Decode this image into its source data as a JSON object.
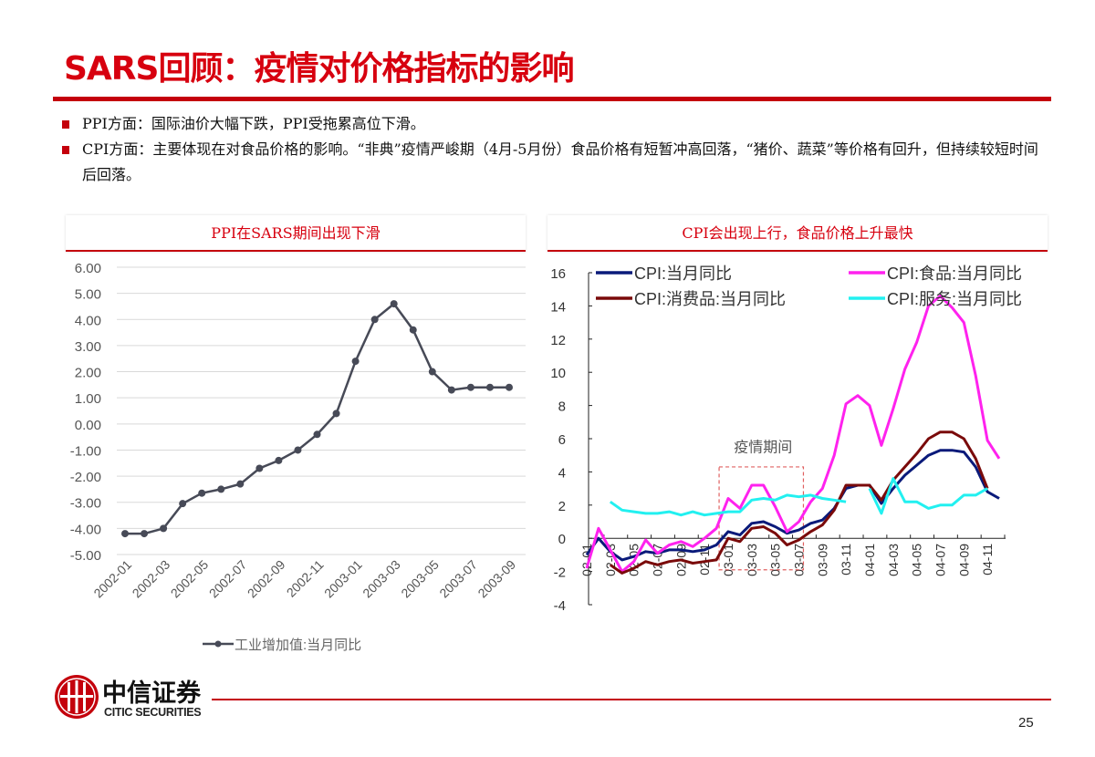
{
  "title": "SARS回顾：疫情对价格指标的影响",
  "bullets": [
    "PPI方面：国际油价大幅下跌，PPI受拖累高位下滑。",
    "CPI方面：主要体现在对食品价格的影响。“非典”疫情严峻期（4月-5月份）食品价格有短暂冲高回落，“猪价、蔬菜”等价格有回升，但持续较短时间后回落。"
  ],
  "panels": {
    "left_title": "PPI在SARS期间出现下滑",
    "right_title": "CPI会出现上行，食品价格上升最快"
  },
  "chart_data": [
    {
      "type": "line",
      "ylim": [
        -5,
        6
      ],
      "yticks": [
        "6.00",
        "5.00",
        "4.00",
        "3.00",
        "2.00",
        "1.00",
        "0.00",
        "-1.00",
        "-2.00",
        "-3.00",
        "-4.00",
        "-5.00"
      ],
      "grid": true,
      "legend_position": "bottom",
      "x": [
        "2002-01",
        "2002-02",
        "2002-03",
        "2002-04",
        "2002-05",
        "2002-06",
        "2002-07",
        "2002-08",
        "2002-09",
        "2002-10",
        "2002-11",
        "2002-12",
        "2003-01",
        "2003-02",
        "2003-03",
        "2003-04",
        "2003-05",
        "2003-06",
        "2003-07",
        "2003-08",
        "2003-09"
      ],
      "xtick_labels": [
        "2002-01",
        "2002-03",
        "2002-05",
        "2002-07",
        "2002-09",
        "2002-11",
        "2003-01",
        "2003-03",
        "2003-05",
        "2003-07",
        "2003-09"
      ],
      "series": [
        {
          "name": "工业增加值:当月同比",
          "color": "#474a57",
          "values": [
            -4.2,
            -4.2,
            -4.0,
            -3.05,
            -2.65,
            -2.5,
            -2.3,
            -1.7,
            -1.4,
            -1.0,
            -0.4,
            0.4,
            2.4,
            4.0,
            4.6,
            3.6,
            2.0,
            1.3,
            1.4,
            1.4,
            1.4
          ]
        }
      ]
    },
    {
      "type": "line",
      "ylim": [
        -4,
        16
      ],
      "yticks": [
        "16",
        "14",
        "12",
        "10",
        "8",
        "6",
        "4",
        "2",
        "0",
        "-2",
        "-4"
      ],
      "grid": false,
      "legend_position": "top",
      "x": [
        "02-01",
        "02-02",
        "02-03",
        "02-04",
        "02-05",
        "02-06",
        "02-07",
        "02-08",
        "02-09",
        "02-10",
        "02-11",
        "02-12",
        "03-01",
        "03-02",
        "03-03",
        "03-04",
        "03-05",
        "03-06",
        "03-07",
        "03-08",
        "03-09",
        "03-10",
        "03-11",
        "03-12",
        "04-01",
        "04-02",
        "04-03",
        "04-04",
        "04-05",
        "04-06",
        "04-07",
        "04-08",
        "04-09",
        "04-10",
        "04-11",
        "04-12"
      ],
      "xtick_labels": [
        "02-01",
        "02-03",
        "02-05",
        "02-07",
        "02-09",
        "02-11",
        "03-01",
        "03-03",
        "03-05",
        "03-07",
        "03-09",
        "03-11",
        "04-01",
        "04-03",
        "04-05",
        "04-07",
        "04-09",
        "04-11"
      ],
      "annotation": "疫情期间",
      "highlight_range": [
        "02-12",
        "03-07"
      ],
      "series": [
        {
          "name": "CPI:当月同比",
          "color": "#0a1a7a",
          "values": [
            -1.0,
            0.0,
            -0.8,
            -1.3,
            -1.1,
            -0.8,
            -0.9,
            -0.7,
            -0.7,
            -0.8,
            -0.7,
            -0.4,
            0.4,
            0.2,
            0.9,
            1.0,
            0.7,
            0.3,
            0.5,
            0.9,
            1.1,
            1.8,
            3.0,
            3.2,
            3.2,
            2.1,
            3.0,
            3.8,
            4.4,
            5.0,
            5.3,
            5.3,
            5.2,
            4.3,
            2.8,
            2.4
          ]
        },
        {
          "name": "CPI:食品:当月同比",
          "color": "#ff22ee",
          "values": [
            -1.8,
            0.6,
            -0.7,
            -2.0,
            -1.4,
            -0.1,
            -0.9,
            -0.4,
            -0.2,
            -0.5,
            0.0,
            0.6,
            2.4,
            1.8,
            3.2,
            3.2,
            1.9,
            0.4,
            1.0,
            2.2,
            3.0,
            5.0,
            8.1,
            8.6,
            8.0,
            5.6,
            7.8,
            10.2,
            11.8,
            14.0,
            14.6,
            13.9,
            13.0,
            9.8,
            5.9,
            4.8
          ]
        },
        {
          "name": "CPI:消费品:当月同比",
          "color": "#7a0a0a",
          "values": [
            null,
            null,
            -1.6,
            -2.1,
            -1.8,
            -1.4,
            -1.6,
            -1.4,
            -1.3,
            -1.5,
            -1.4,
            -1.3,
            0.0,
            -0.2,
            0.6,
            0.7,
            0.3,
            -0.4,
            -0.1,
            0.4,
            0.8,
            1.7,
            3.2,
            3.2,
            3.2,
            2.3,
            3.5,
            4.3,
            5.1,
            6.0,
            6.4,
            6.4,
            6.0,
            4.8,
            3.0,
            null
          ]
        },
        {
          "name": "CPI:服务:当月同比",
          "color": "#22f0f0",
          "values": [
            null,
            null,
            2.2,
            1.7,
            1.6,
            1.5,
            1.5,
            1.6,
            1.4,
            1.6,
            1.4,
            1.5,
            1.6,
            1.6,
            2.3,
            2.4,
            2.3,
            2.6,
            2.5,
            2.6,
            2.4,
            2.3,
            2.2,
            null,
            3.0,
            1.5,
            3.6,
            2.2,
            2.2,
            1.8,
            2.0,
            2.0,
            2.6,
            2.6,
            3.0,
            null
          ]
        }
      ]
    }
  ],
  "footer": {
    "logo_cn": "中信证券",
    "logo_en": "CITIC SECURITIES",
    "page_number": "25"
  },
  "colors": {
    "brand_red": "#c4000c"
  }
}
